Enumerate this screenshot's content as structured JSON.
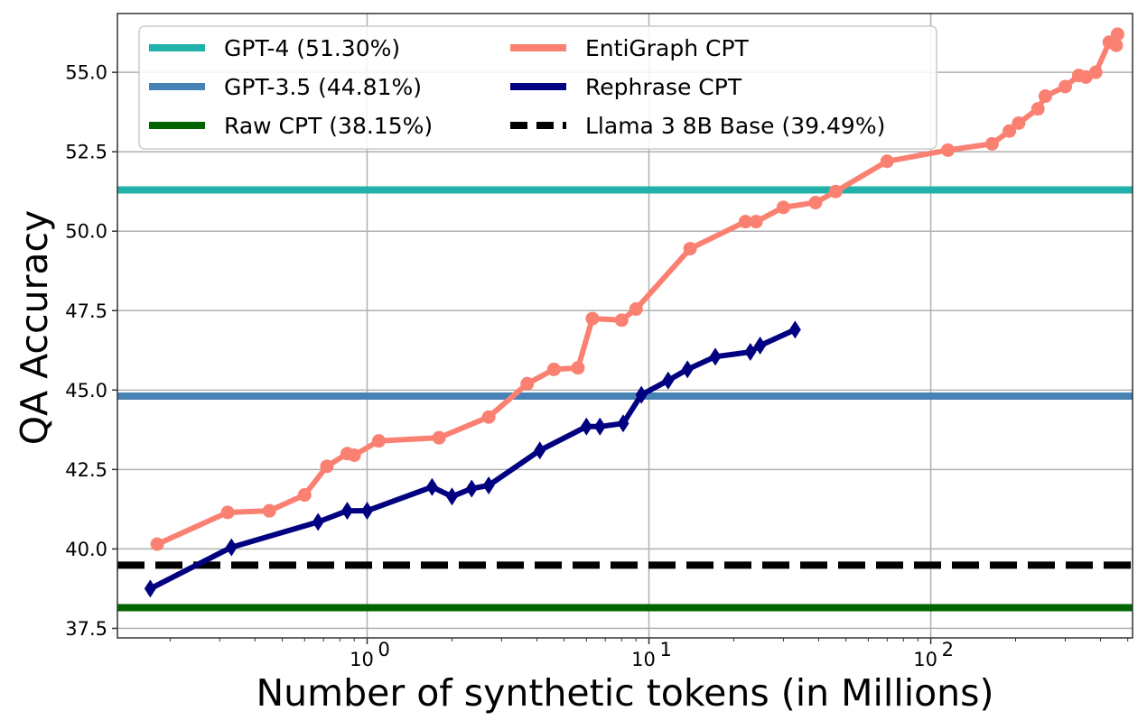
{
  "chart_data": {
    "type": "line",
    "title": "",
    "xlabel": "Number of synthetic tokens (in Millions)",
    "ylabel": "QA Accuracy",
    "xscale": "log",
    "xlim": [
      0.13,
      520
    ],
    "ylim": [
      37.2,
      56.85
    ],
    "grid": true,
    "legend_placement": "top-left",
    "x_ticks": [
      {
        "value": 1,
        "base": "10",
        "exp": "0"
      },
      {
        "value": 10,
        "base": "10",
        "exp": "1"
      },
      {
        "value": 100,
        "base": "10",
        "exp": "2"
      }
    ],
    "y_ticks": [
      37.5,
      40.0,
      42.5,
      45.0,
      47.5,
      50.0,
      52.5,
      55.0
    ],
    "y_tick_labels": [
      "37.5",
      "40.0",
      "42.5",
      "45.0",
      "47.5",
      "50.0",
      "52.5",
      "55.0"
    ],
    "hlines": [
      {
        "name": "GPT-4 (51.30%)",
        "y": 51.3,
        "color": "#20b2aa",
        "style": "solid"
      },
      {
        "name": "GPT-3.5 (44.81%)",
        "y": 44.81,
        "color": "#4682b4",
        "style": "solid"
      },
      {
        "name": "Raw CPT (38.15%)",
        "y": 38.15,
        "color": "#006400",
        "style": "solid"
      },
      {
        "name": "Llama 3 8B Base (39.49%)",
        "y": 39.49,
        "color": "#000000",
        "style": "dashed"
      }
    ],
    "series": [
      {
        "name": "EntiGraph CPT",
        "color": "#fa8072",
        "marker": "circle",
        "x": [
          0.18,
          0.32,
          0.45,
          0.6,
          0.72,
          0.85,
          0.9,
          1.1,
          1.8,
          2.7,
          3.7,
          4.6,
          5.6,
          6.3,
          8.0,
          9.0,
          14.0,
          22.0,
          24.0,
          30.0,
          39.0,
          46.0,
          70.0,
          115.0,
          165.0,
          190.0,
          205.0,
          240.0,
          255.0,
          300.0,
          335.0,
          355.0,
          385.0,
          430.0,
          455.0,
          460.0
        ],
        "y": [
          40.15,
          41.15,
          41.2,
          41.7,
          42.6,
          43.0,
          42.95,
          43.4,
          43.5,
          44.15,
          45.2,
          45.65,
          45.7,
          47.25,
          47.2,
          47.55,
          49.45,
          50.3,
          50.3,
          50.75,
          50.9,
          51.25,
          52.2,
          52.55,
          52.75,
          53.15,
          53.4,
          53.85,
          54.25,
          54.55,
          54.9,
          54.85,
          55.0,
          55.95,
          55.85,
          56.2
        ]
      },
      {
        "name": "Rephrase CPT",
        "color": "#000080",
        "marker": "diamond",
        "x": [
          0.17,
          0.33,
          0.67,
          0.85,
          1.0,
          1.7,
          2.0,
          2.35,
          2.7,
          4.1,
          6.0,
          6.7,
          8.1,
          9.4,
          11.7,
          13.7,
          17.2,
          22.9,
          24.8,
          33.0
        ],
        "y": [
          38.75,
          40.05,
          40.85,
          41.2,
          41.2,
          41.95,
          41.65,
          41.9,
          42.0,
          43.1,
          43.85,
          43.85,
          43.95,
          44.85,
          45.3,
          45.65,
          46.05,
          46.2,
          46.4,
          46.9
        ]
      }
    ],
    "legend": [
      {
        "label": "GPT-4 (51.30%)",
        "color": "#20b2aa",
        "style": "solid"
      },
      {
        "label": "GPT-3.5 (44.81%)",
        "color": "#4682b4",
        "style": "solid"
      },
      {
        "label": "Raw CPT (38.15%)",
        "color": "#006400",
        "style": "solid"
      },
      {
        "label": "EntiGraph CPT",
        "color": "#fa8072",
        "style": "solid"
      },
      {
        "label": "Rephrase CPT",
        "color": "#000080",
        "style": "solid"
      },
      {
        "label": "Llama 3 8B Base (39.49%)",
        "color": "#000000",
        "style": "dashed"
      }
    ]
  }
}
